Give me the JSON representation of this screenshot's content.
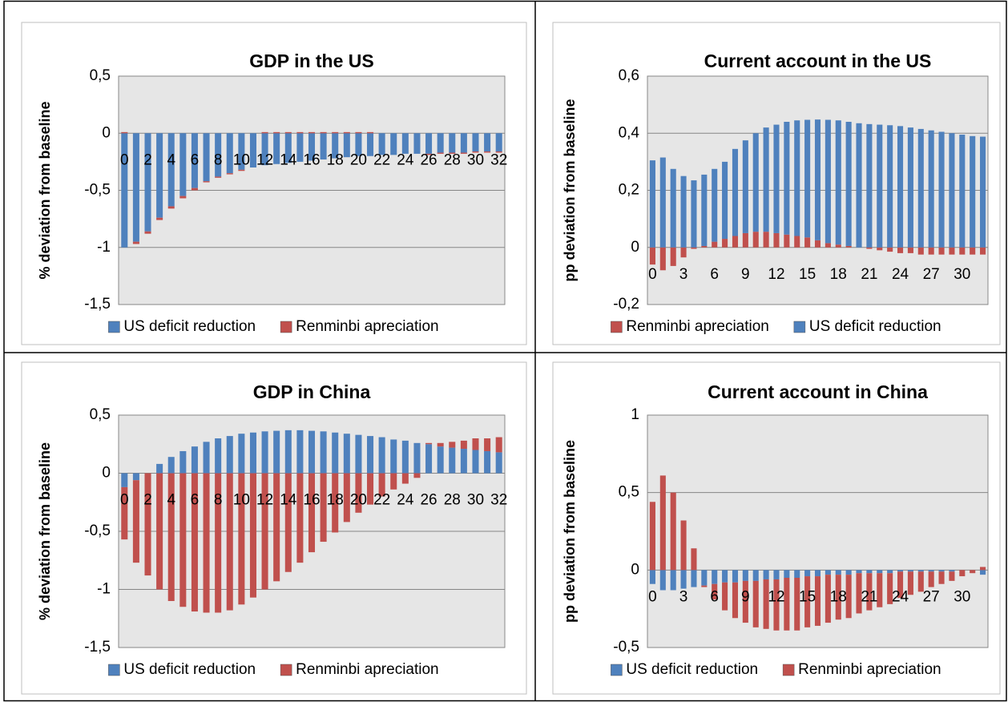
{
  "chart_data": [
    {
      "type": "bar",
      "stacked": true,
      "title": "GDP in the US",
      "y_label": "% deviation from baseline",
      "categories": [
        "0",
        null,
        "2",
        null,
        "4",
        null,
        "6",
        null,
        "8",
        null,
        "10",
        null,
        "12",
        null,
        "14",
        null,
        "16",
        null,
        "18",
        null,
        "20",
        null,
        "22",
        null,
        "24",
        null,
        "26",
        null,
        "28",
        null,
        "30",
        null,
        "32"
      ],
      "series": [
        {
          "name": "US deficit reduction",
          "color": "#4f81bd",
          "values": [
            -1.0,
            -0.95,
            -0.86,
            -0.74,
            -0.64,
            -0.55,
            -0.48,
            -0.42,
            -0.38,
            -0.35,
            -0.32,
            -0.3,
            -0.28,
            -0.27,
            -0.26,
            -0.25,
            -0.24,
            -0.23,
            -0.22,
            -0.21,
            -0.2,
            -0.2,
            -0.19,
            -0.19,
            -0.18,
            -0.18,
            -0.18,
            -0.17,
            -0.17,
            -0.17,
            -0.16,
            -0.16,
            -0.16
          ]
        },
        {
          "name": "Renminbi apreciation",
          "color": "#c0504d",
          "values": [
            0.01,
            -0.02,
            -0.02,
            -0.02,
            -0.02,
            -0.02,
            -0.02,
            -0.01,
            -0.01,
            -0.01,
            -0.01,
            0,
            0.01,
            0.01,
            0.01,
            0.01,
            0.01,
            0.01,
            0.01,
            0.01,
            0.01,
            0.01,
            0,
            0,
            0,
            0,
            -0.01,
            -0.01,
            -0.01,
            -0.01,
            -0.01,
            -0.01,
            -0.01
          ]
        }
      ],
      "ylim": [
        -1.5,
        0.5
      ],
      "yticks": [
        {
          "value": -1.5,
          "label": "-1,5"
        },
        -1,
        {
          "value": -0.5,
          "label": "-0,5"
        },
        0,
        {
          "value": 0.5,
          "label": "0,5"
        }
      ],
      "grid": true,
      "legend": "bottom"
    },
    {
      "type": "bar",
      "stacked": true,
      "title": "Current account in the US",
      "y_label": "pp deviation from baseline",
      "categories": [
        "0",
        null,
        null,
        "3",
        null,
        null,
        "6",
        null,
        null,
        "9",
        null,
        null,
        "12",
        null,
        null,
        "15",
        null,
        null,
        "18",
        null,
        null,
        "21",
        null,
        null,
        "24",
        null,
        null,
        "27",
        null,
        null,
        "30",
        null,
        null
      ],
      "series": [
        {
          "name": "Renminbi apreciation",
          "color": "#c0504d",
          "values": [
            -0.06,
            -0.08,
            -0.065,
            -0.035,
            -0.005,
            0.005,
            0.02,
            0.03,
            0.04,
            0.05,
            0.055,
            0.055,
            0.05,
            0.045,
            0.04,
            0.035,
            0.025,
            0.015,
            0.01,
            0.005,
            0,
            -0.005,
            -0.01,
            -0.015,
            -0.02,
            -0.02,
            -0.025,
            -0.025,
            -0.025,
            -0.025,
            -0.025,
            -0.025,
            -0.025
          ]
        },
        {
          "name": "US deficit reduction",
          "color": "#4f81bd",
          "values": [
            0.305,
            0.315,
            0.275,
            0.25,
            0.235,
            0.25,
            0.255,
            0.27,
            0.305,
            0.325,
            0.345,
            0.365,
            0.38,
            0.395,
            0.405,
            0.412,
            0.423,
            0.432,
            0.435,
            0.435,
            0.435,
            0.432,
            0.43,
            0.428,
            0.425,
            0.42,
            0.415,
            0.41,
            0.405,
            0.4,
            0.395,
            0.39,
            0.388
          ]
        }
      ],
      "ylim": [
        -0.2,
        0.6
      ],
      "yticks": [
        {
          "value": -0.2,
          "label": "-0,2"
        },
        0,
        {
          "value": 0.2,
          "label": "0,2"
        },
        {
          "value": 0.4,
          "label": "0,4"
        },
        {
          "value": 0.6,
          "label": "0,6"
        }
      ],
      "grid": true,
      "legend": "bottom"
    },
    {
      "type": "bar",
      "stacked": true,
      "title": "GDP in China",
      "y_label": "% deviation from baseline",
      "categories": [
        "0",
        null,
        "2",
        null,
        "4",
        null,
        "6",
        null,
        "8",
        null,
        "10",
        null,
        "12",
        null,
        "14",
        null,
        "16",
        null,
        "18",
        null,
        "20",
        null,
        "22",
        null,
        "24",
        null,
        "26",
        null,
        "28",
        null,
        "30",
        null,
        "32"
      ],
      "series": [
        {
          "name": "US deficit reduction",
          "color": "#4f81bd",
          "values": [
            -0.12,
            -0.06,
            0,
            0.08,
            0.14,
            0.19,
            0.23,
            0.27,
            0.3,
            0.32,
            0.34,
            0.35,
            0.36,
            0.365,
            0.37,
            0.37,
            0.365,
            0.36,
            0.35,
            0.34,
            0.33,
            0.32,
            0.31,
            0.29,
            0.28,
            0.26,
            0.25,
            0.23,
            0.22,
            0.21,
            0.2,
            0.19,
            0.18
          ]
        },
        {
          "name": "Renminbi apreciation",
          "color": "#c0504d",
          "values": [
            -0.45,
            -0.71,
            -0.88,
            -1.0,
            -1.1,
            -1.15,
            -1.19,
            -1.2,
            -1.2,
            -1.18,
            -1.13,
            -1.07,
            -1.0,
            -0.93,
            -0.85,
            -0.77,
            -0.68,
            -0.59,
            -0.51,
            -0.42,
            -0.34,
            -0.27,
            -0.2,
            -0.14,
            -0.09,
            -0.04,
            0.01,
            0.03,
            0.05,
            0.07,
            0.1,
            0.11,
            0.13
          ]
        }
      ],
      "ylim": [
        -1.5,
        0.5
      ],
      "yticks": [
        {
          "value": -1.5,
          "label": "-1,5"
        },
        -1,
        {
          "value": -0.5,
          "label": "-0,5"
        },
        0,
        {
          "value": 0.5,
          "label": "0,5"
        }
      ],
      "grid": true,
      "legend": "bottom"
    },
    {
      "type": "bar",
      "stacked": true,
      "title": "Current account in China",
      "y_label": "pp deviation from baseline",
      "categories": [
        "0",
        null,
        null,
        "3",
        null,
        null,
        "6",
        null,
        null,
        "9",
        null,
        null,
        "12",
        null,
        null,
        "15",
        null,
        null,
        "18",
        null,
        null,
        "21",
        null,
        null,
        "24",
        null,
        null,
        "27",
        null,
        null,
        "30",
        null,
        null
      ],
      "series": [
        {
          "name": "US deficit reduction",
          "color": "#4f81bd",
          "values": [
            -0.09,
            -0.13,
            -0.13,
            -0.12,
            -0.11,
            -0.1,
            -0.09,
            -0.08,
            -0.08,
            -0.07,
            -0.07,
            -0.06,
            -0.06,
            -0.05,
            -0.05,
            -0.04,
            -0.04,
            -0.03,
            -0.03,
            -0.03,
            -0.02,
            -0.02,
            -0.02,
            -0.02,
            -0.01,
            -0.01,
            -0.01,
            -0.01,
            -0.01,
            -0.01,
            0,
            0,
            -0.03
          ]
        },
        {
          "name": "Renminbi apreciation",
          "color": "#c0504d",
          "values": [
            0.44,
            0.61,
            0.5,
            0.32,
            0.14,
            -0.01,
            -0.1,
            -0.18,
            -0.23,
            -0.27,
            -0.3,
            -0.32,
            -0.33,
            -0.34,
            -0.34,
            -0.33,
            -0.32,
            -0.31,
            -0.29,
            -0.28,
            -0.26,
            -0.24,
            -0.22,
            -0.2,
            -0.17,
            -0.15,
            -0.13,
            -0.1,
            -0.08,
            -0.06,
            -0.04,
            -0.02,
            0.02
          ]
        }
      ],
      "ylim": [
        -0.5,
        1
      ],
      "yticks": [
        {
          "value": -0.5,
          "label": "-0,5"
        },
        0,
        {
          "value": 0.5,
          "label": "0,5"
        },
        1
      ],
      "grid": true,
      "legend": "bottom"
    }
  ]
}
